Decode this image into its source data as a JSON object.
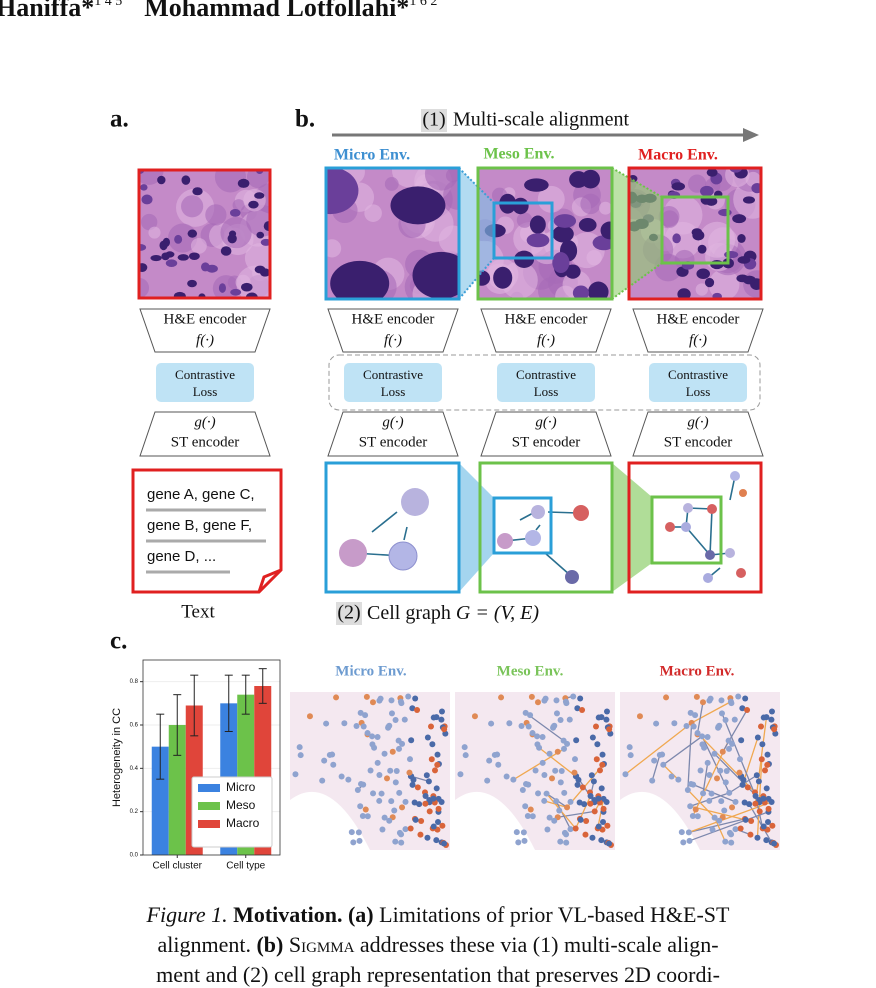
{
  "header": {
    "authors": [
      {
        "name": "Haniffa*",
        "affiliations": "1 4 5"
      },
      {
        "name": "Mohammad Lotfollahi*",
        "affiliations": "1 6 2"
      }
    ]
  },
  "panel_labels": [
    "a.",
    "b.",
    "c."
  ],
  "panel_b": {
    "step1_number": "(1)",
    "step1_text": "Multi-scale alignment",
    "env_labels": [
      "Micro Env.",
      "Meso Env.",
      "Macro Env."
    ],
    "step2_number": "(2)",
    "step2_text": "Cell graph",
    "step2_formula": "G = (V, E)"
  },
  "encoders": [
    {
      "he_encoder": "H&E  encoder",
      "f": "f(·)",
      "loss": [
        "Contrastive",
        "Loss"
      ],
      "g": "g(·)",
      "st_encoder": "ST encoder"
    },
    {
      "he_encoder": "H&E encoder",
      "f": "f(·)",
      "loss": [
        "Contrastive",
        "Loss"
      ],
      "g": "g(·)",
      "st_encoder": "ST encoder"
    },
    {
      "he_encoder": "H&E encoder",
      "f": "f(·)",
      "loss": [
        "Contrastive",
        "Loss"
      ],
      "g": "g(·)",
      "st_encoder": "ST encoder"
    },
    {
      "he_encoder": "H&E encoder",
      "f": "f(·)",
      "loss": [
        "Contrastive",
        "Loss"
      ],
      "g": "g(·)",
      "st_encoder": "ST encoder"
    }
  ],
  "gene_lines": [
    "gene A, gene C,",
    "gene B, gene F,",
    "gene D, ..."
  ],
  "text_label": "Text",
  "chart_data": {
    "type": "bar",
    "ylabel": "Heterogeneity in CC",
    "categories": [
      "Cell cluster",
      "Cell type"
    ],
    "series": [
      {
        "name": "Micro",
        "color": "#3b82e0",
        "values": [
          0.5,
          0.7
        ],
        "errors": [
          0.15,
          0.13
        ]
      },
      {
        "name": "Meso",
        "color": "#6cc24a",
        "values": [
          0.6,
          0.74
        ],
        "errors": [
          0.14,
          0.09
        ]
      },
      {
        "name": "Macro",
        "color": "#e0453a",
        "values": [
          0.69,
          0.78
        ],
        "errors": [
          0.14,
          0.08
        ]
      }
    ],
    "ylim": [
      0,
      0.9
    ],
    "yticks": [
      {
        "value": 0,
        "label": "0.0"
      },
      0.2,
      0.4,
      0.6,
      0.8
    ],
    "grid": true,
    "legend": "lower right"
  },
  "panel_c_titles": [
    "Micro Env.",
    "Meso Env.",
    "Macro Env."
  ],
  "caption": {
    "lines": [
      [
        "Figure 1.",
        "Motivation.",
        "(a)",
        "Limitations of prior VL-based H&E-ST"
      ],
      [
        "alignment.",
        "(b)",
        "Sigmma",
        "addresses these via (1) multi-scale align-"
      ],
      [
        "ment and (2) cell graph representation that preserves 2D coordi-"
      ]
    ]
  }
}
